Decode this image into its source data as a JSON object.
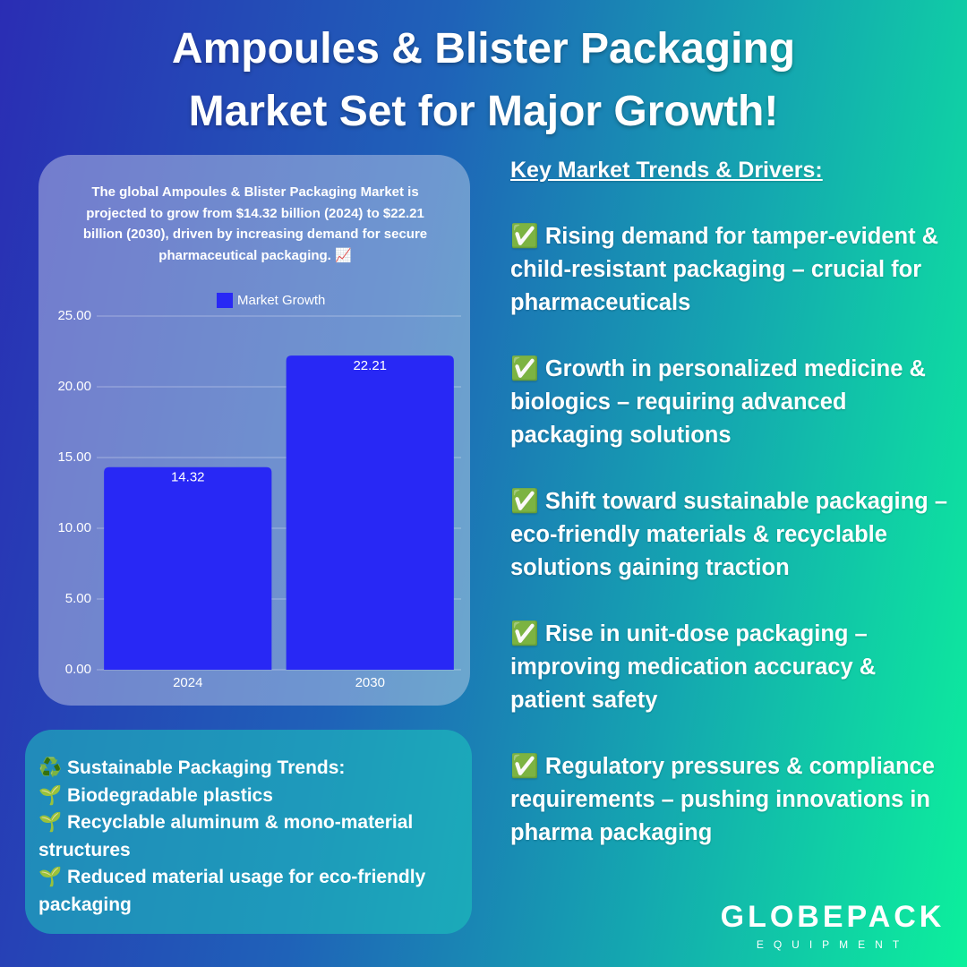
{
  "title_lines": [
    "Ampoules & Blister Packaging",
    "Market Set for Major Growth!"
  ],
  "chart_data": {
    "type": "bar",
    "title": "The global Ampoules & Blister Packaging Market is projected to grow from $14.32 billion (2024) to $22.21 billion (2030), driven by increasing demand for secure pharmaceutical packaging. 📈",
    "categories": [
      "2024",
      "2030"
    ],
    "series": [
      {
        "name": "Market Growth",
        "color": "#2828f5",
        "values": [
          14.32,
          22.21
        ]
      }
    ],
    "ylim": [
      0,
      25
    ],
    "yticks": [
      {
        "value": 0,
        "label": "0.00"
      },
      {
        "value": 5,
        "label": "5.00"
      },
      {
        "value": 10,
        "label": "10.00"
      },
      {
        "value": 15,
        "label": "15.00"
      },
      {
        "value": 20,
        "label": "20.00"
      },
      {
        "value": 25,
        "label": "25.00"
      }
    ],
    "grid": true,
    "legend": "top"
  },
  "trends": {
    "heading": "Key Market Trends & Drivers:",
    "items": [
      "✅ Rising demand for tamper-evident & child-resistant packaging – crucial for pharmaceuticals",
      "✅ Growth in personalized medicine & biologics – requiring advanced packaging solutions",
      "✅ Shift toward sustainable packaging – eco-friendly materials & recyclable solutions gaining traction",
      "✅ Rise in unit-dose packaging – improving medication accuracy & patient safety",
      "✅ Regulatory pressures & compliance requirements – pushing innovations in pharma packaging"
    ]
  },
  "sustainable": {
    "items": [
      "♻️ Sustainable Packaging Trends:",
      "🌱 Biodegradable plastics",
      "🌱 Recyclable aluminum & mono-material structures",
      "🌱 Reduced material usage for eco-friendly packaging"
    ]
  },
  "brand": {
    "name": "GLOBEPACK",
    "tagline": "EQUIPMENT"
  }
}
